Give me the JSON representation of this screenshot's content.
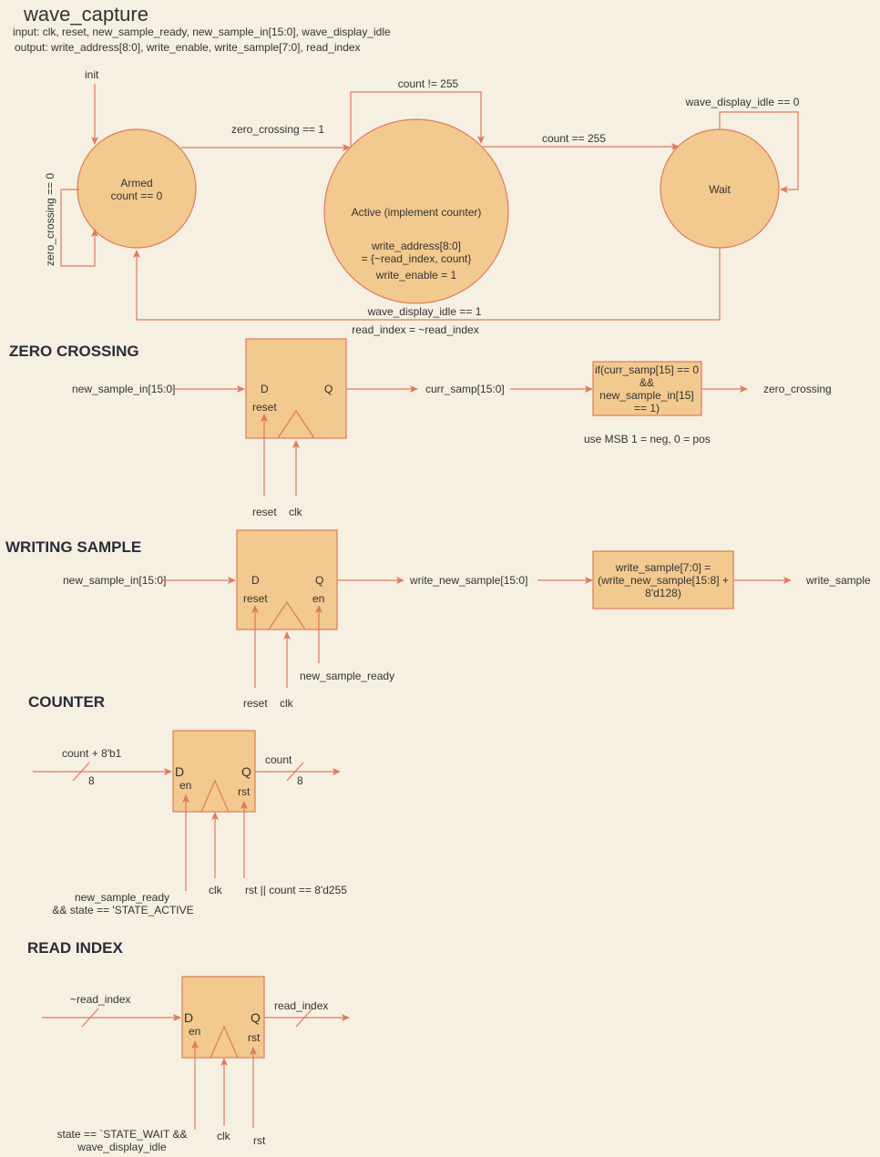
{
  "header": {
    "title": "wave_capture",
    "inputs": "input: clk, reset, new_sample_ready, new_sample_in[15:0], wave_display_idle",
    "outputs": "output: write_address[8:0], write_enable, write_sample[7:0], read_index"
  },
  "fsm": {
    "init_label": "init",
    "armed": {
      "line1": "Armed",
      "line2": "count == 0"
    },
    "active": {
      "line1": "Active (implement counter)",
      "line2": "write_address[8:0]",
      "line3": "= {~read_index, count}",
      "line4": "write_enable = 1"
    },
    "wait": {
      "line1": "Wait"
    },
    "edges": {
      "armed_self": "zero_crossing == 0",
      "armed_to_active": "zero_crossing == 1",
      "active_self": "count != 255",
      "active_to_wait": "count == 255",
      "wait_self": "wave_display_idle == 0",
      "wait_to_armed_1": "wave_display_idle == 1",
      "wait_to_armed_2": "read_index = ~read_index"
    }
  },
  "zero_crossing": {
    "heading": "ZERO CROSSING",
    "input": "new_sample_in[15:0]",
    "pin_d": "D",
    "pin_q": "Q",
    "pin_reset": "reset",
    "output": "curr_samp[15:0]",
    "logic": [
      "if(curr_samp[15] == 0",
      "&&",
      "new_sample_in[15]",
      "== 1)"
    ],
    "result": "zero_crossing",
    "note": "use MSB 1 = neg, 0 = pos",
    "bottom_reset": "reset",
    "bottom_clk": "clk"
  },
  "writing_sample": {
    "heading": "WRITING SAMPLE",
    "input": "new_sample_in[15:0]",
    "pin_d": "D",
    "pin_q": "Q",
    "pin_reset": "reset",
    "pin_en": "en",
    "output": "write_new_sample[15:0]",
    "logic": [
      "write_sample[7:0] =",
      "(write_new_sample[15:8] +",
      "8'd128)"
    ],
    "result": "write_sample",
    "bottom_reset": "reset",
    "bottom_clk": "clk",
    "bottom_en": "new_sample_ready"
  },
  "counter": {
    "heading": "COUNTER",
    "input": "count + 8'b1",
    "input_width": "8",
    "pin_d": "D",
    "pin_q": "Q",
    "pin_en": "en",
    "pin_rst": "rst",
    "output": "count",
    "output_width": "8",
    "bottom_en_1": "new_sample_ready",
    "bottom_en_2": "&& state == 'STATE_ACTIVE",
    "bottom_clk": "clk",
    "bottom_rst": "rst || count == 8'd255"
  },
  "read_index": {
    "heading": "READ INDEX",
    "input": "~read_index",
    "pin_d": "D",
    "pin_q": "Q",
    "pin_en": "en",
    "pin_rst": "rst",
    "output": "read_index",
    "bottom_en_1": "state == `STATE_WAIT &&",
    "bottom_en_2": "wave_display_idle",
    "bottom_clk": "clk",
    "bottom_rst": "rst"
  },
  "colors": {
    "background": "#f5f0e1",
    "fill": "#f2c98e",
    "stroke": "#e07a5f",
    "text": "#333333"
  }
}
